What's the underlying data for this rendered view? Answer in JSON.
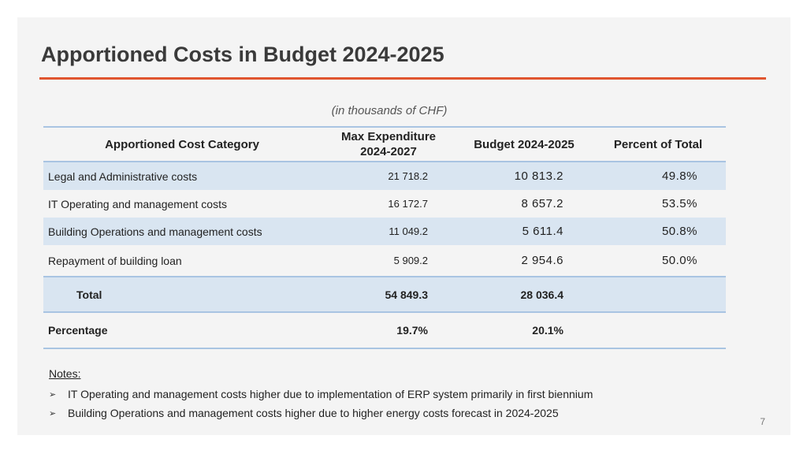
{
  "title": "Apportioned Costs in Budget 2024-2025",
  "units_note": "(in thousands of CHF)",
  "table": {
    "headers": {
      "category": "Apportioned Cost Category",
      "max_line1": "Max Expenditure",
      "max_line2": "2024-2027",
      "budget": "Budget 2024-2025",
      "percent": "Percent of Total"
    },
    "rows": [
      {
        "category": "Legal and Administrative costs",
        "max": "21 718.2",
        "budget": "10 813.2",
        "percent": "49.8%"
      },
      {
        "category": "IT Operating and management costs",
        "max": "16 172.7",
        "budget": "8 657.2",
        "percent": "53.5%"
      },
      {
        "category": "Building Operations and management costs",
        "max": "11 049.2",
        "budget": "5 611.4",
        "percent": "50.8%"
      },
      {
        "category": "Repayment of building loan",
        "max": "5 909.2",
        "budget": "2 954.6",
        "percent": "50.0%"
      }
    ],
    "total": {
      "label": "Total",
      "max": "54 849.3",
      "budget": "28 036.4"
    },
    "percentage": {
      "label": "Percentage",
      "max": "19.7%",
      "budget": "20.1%"
    }
  },
  "notes": {
    "title": "Notes:",
    "items": [
      "IT Operating and management costs higher due to implementation of ERP system primarily in first biennium",
      "Building Operations and management costs higher due to higher energy costs forecast in 2024-2025"
    ],
    "bullet_symbol": "➢"
  },
  "page_number": "7"
}
